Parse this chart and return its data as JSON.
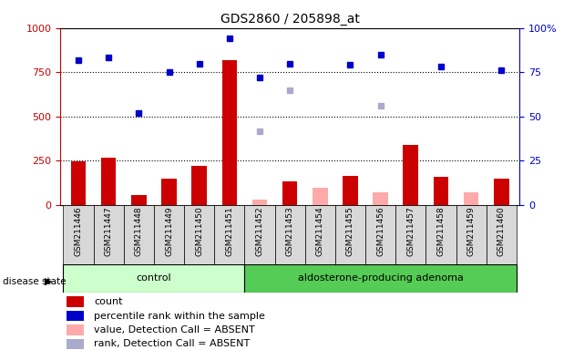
{
  "title": "GDS2860 / 205898_at",
  "samples": [
    "GSM211446",
    "GSM211447",
    "GSM211448",
    "GSM211449",
    "GSM211450",
    "GSM211451",
    "GSM211452",
    "GSM211453",
    "GSM211454",
    "GSM211455",
    "GSM211456",
    "GSM211457",
    "GSM211458",
    "GSM211459",
    "GSM211460"
  ],
  "control_samples": [
    "GSM211446",
    "GSM211447",
    "GSM211448",
    "GSM211449",
    "GSM211450",
    "GSM211451"
  ],
  "adenoma_samples": [
    "GSM211452",
    "GSM211453",
    "GSM211454",
    "GSM211455",
    "GSM211456",
    "GSM211457",
    "GSM211458",
    "GSM211459",
    "GSM211460"
  ],
  "count_values": [
    245,
    265,
    55,
    150,
    220,
    820,
    null,
    130,
    null,
    165,
    null,
    340,
    160,
    null,
    150
  ],
  "count_absent_values": [
    null,
    null,
    null,
    null,
    null,
    null,
    30,
    null,
    95,
    null,
    70,
    null,
    null,
    70,
    null
  ],
  "percentile_rank": [
    82,
    83.5,
    52,
    75,
    80,
    94,
    72,
    80,
    null,
    79,
    85,
    null,
    78,
    null,
    76
  ],
  "rank_absent": [
    null,
    null,
    null,
    null,
    null,
    null,
    41.5,
    65,
    null,
    null,
    56,
    null,
    null,
    null,
    null
  ],
  "ylim": [
    0,
    1000
  ],
  "y2lim": [
    0,
    100
  ],
  "yticks": [
    0,
    250,
    500,
    750,
    1000
  ],
  "y2ticks": [
    0,
    25,
    50,
    75,
    100
  ],
  "bar_color": "#cc0000",
  "bar_absent_color": "#ffaaaa",
  "dot_color": "#0000cc",
  "dot_absent_color": "#aaaacc",
  "control_bg": "#ccffcc",
  "adenoma_bg": "#55cc55",
  "plot_bg": "#d8d8d8",
  "title_color": "#000000",
  "left_axis_color": "#cc0000",
  "right_axis_color": "#0000cc",
  "legend_items": [
    {
      "color": "#cc0000",
      "label": "count"
    },
    {
      "color": "#0000cc",
      "label": "percentile rank within the sample"
    },
    {
      "color": "#ffaaaa",
      "label": "value, Detection Call = ABSENT"
    },
    {
      "color": "#aaaacc",
      "label": "rank, Detection Call = ABSENT"
    }
  ]
}
